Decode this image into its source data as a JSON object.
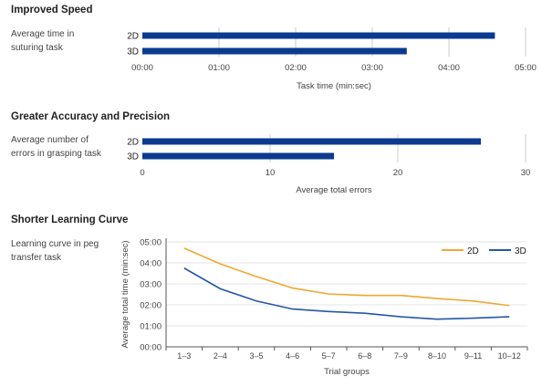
{
  "sections": [
    {
      "title": "Improved Speed",
      "description_lines": [
        "Average time in",
        "suturing task"
      ]
    },
    {
      "title": "Greater Accuracy and Precision",
      "description_lines": [
        "Average number of",
        "errors in grasping task"
      ]
    },
    {
      "title": "Shorter Learning Curve",
      "description_lines": [
        "Learning curve in peg",
        "transfer task"
      ]
    }
  ],
  "colors": {
    "bar": "#0b3a8f",
    "series_2d": "#f0a732",
    "series_3d": "#2457a8",
    "grid": "#cccccc",
    "axis_text": "#444444"
  },
  "chart_data": [
    {
      "type": "bar",
      "orientation": "horizontal",
      "title": "Improved Speed",
      "categories": [
        "2D",
        "3D"
      ],
      "values": [
        276,
        207
      ],
      "value_unit": "seconds",
      "xlabel": "Task time (min:sec)",
      "xlim": [
        0,
        300
      ],
      "xticks": [
        0,
        60,
        120,
        180,
        240,
        300
      ],
      "xtick_labels": [
        "00:00",
        "01:00",
        "02:00",
        "03:00",
        "04:00",
        "05:00"
      ],
      "grid": true
    },
    {
      "type": "bar",
      "orientation": "horizontal",
      "title": "Greater Accuracy and Precision",
      "categories": [
        "2D",
        "3D"
      ],
      "values": [
        26.5,
        15
      ],
      "xlabel": "Average total errors",
      "xlim": [
        0,
        30
      ],
      "xticks": [
        0,
        10,
        20,
        30
      ],
      "xtick_labels": [
        "0",
        "10",
        "20",
        "30"
      ],
      "grid": true
    },
    {
      "type": "line",
      "title": "Shorter Learning Curve",
      "categories": [
        "1–3",
        "2–4",
        "3–5",
        "4–6",
        "5–7",
        "6–8",
        "7–9",
        "8–10",
        "9–11",
        "10–12"
      ],
      "series": [
        {
          "name": "2D",
          "values": [
            282,
            237,
            201,
            168,
            151,
            147,
            147,
            138,
            131,
            118
          ]
        },
        {
          "name": "3D",
          "values": [
            225,
            166,
            131,
            108,
            101,
            96,
            86,
            79,
            82,
            86
          ]
        }
      ],
      "value_unit": "seconds",
      "xlabel": "Trial groups",
      "ylabel": "Average total time (min:sec)",
      "ylim": [
        0,
        300
      ],
      "yticks": [
        0,
        60,
        120,
        180,
        240,
        300
      ],
      "ytick_labels": [
        "00:00",
        "01:00",
        "02:00",
        "03:00",
        "04:00",
        "05:00"
      ],
      "legend": "top-right",
      "grid": true
    }
  ]
}
